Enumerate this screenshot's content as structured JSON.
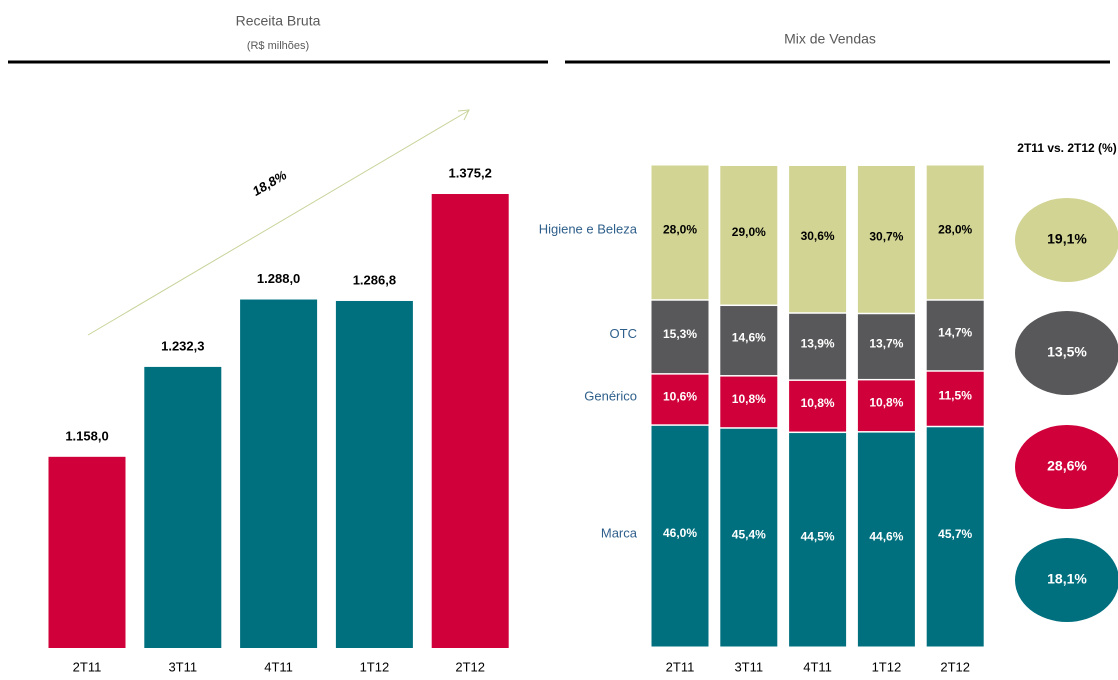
{
  "chart_data": [
    {
      "type": "bar",
      "title": "Receita Bruta",
      "subtitle": "(R$ milhões)",
      "categories": [
        "2T11",
        "3T11",
        "4T11",
        "1T12",
        "2T12"
      ],
      "values": [
        1158.0,
        1232.3,
        1288.0,
        1286.8,
        1375.2
      ],
      "value_labels": [
        "1.158,0",
        "1.232,3",
        "1.288,0",
        "1.286,8",
        "1.375,2"
      ],
      "colors": [
        "#d0003a",
        "#00707f",
        "#00707f",
        "#00707f",
        "#d0003a"
      ],
      "ylim": [
        1000,
        1400
      ],
      "annotation": "18,8%"
    },
    {
      "type": "stacked_bar",
      "title": "Mix de Vendas",
      "categories": [
        "2T11",
        "3T11",
        "4T11",
        "1T12",
        "2T12"
      ],
      "ylim": [
        0,
        100
      ],
      "change_title": "2T11 vs. 2T12 (%)",
      "series": [
        {
          "name": "Marca",
          "color": "#00707f",
          "values": [
            46.0,
            45.4,
            44.5,
            44.6,
            45.7
          ],
          "value_labels": [
            "46,0%",
            "45,4%",
            "44,5%",
            "44,6%",
            "45,7%"
          ],
          "change": 18.1,
          "change_label": "18,1%"
        },
        {
          "name": "Genérico",
          "color": "#d0003a",
          "values": [
            10.6,
            10.8,
            10.8,
            10.8,
            11.5
          ],
          "value_labels": [
            "10,6%",
            "10,8%",
            "10,8%",
            "10,8%",
            "11,5%"
          ],
          "change": 28.6,
          "change_label": "28,6%"
        },
        {
          "name": "OTC",
          "color": "#58585a",
          "values": [
            15.3,
            14.6,
            13.9,
            13.7,
            14.7
          ],
          "value_labels": [
            "15,3%",
            "14,6%",
            "13,9%",
            "13,7%",
            "14,7%"
          ],
          "change": 13.5,
          "change_label": "13,5%"
        },
        {
          "name": "Higiene e Beleza",
          "color": "#d2d494",
          "values": [
            28.0,
            29.0,
            30.6,
            30.7,
            28.0
          ],
          "value_labels": [
            "28,0%",
            "29,0%",
            "30,6%",
            "30,7%",
            "28,0%"
          ],
          "change": 19.1,
          "change_label": "19,1%"
        }
      ]
    }
  ]
}
